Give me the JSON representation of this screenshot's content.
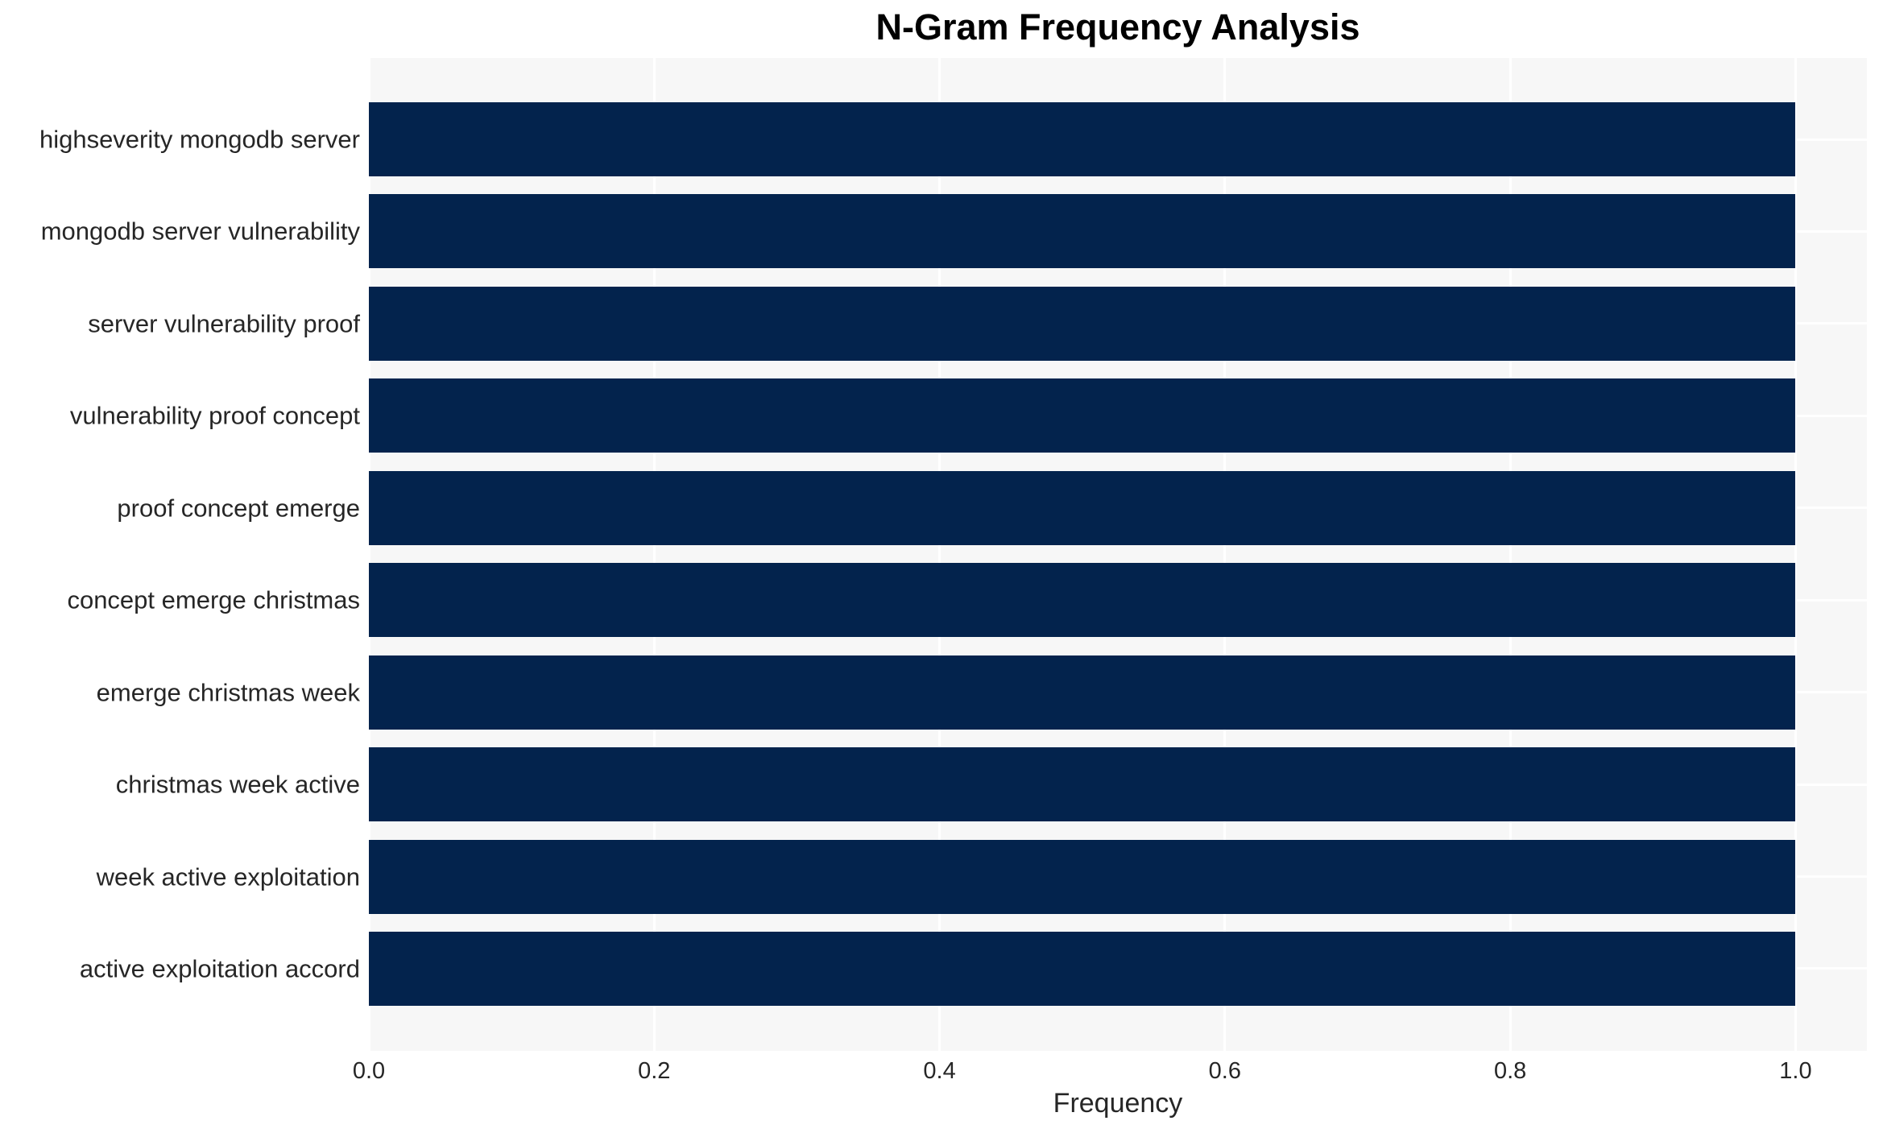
{
  "title": "N-Gram Frequency Analysis",
  "chart_data": {
    "type": "bar",
    "orientation": "horizontal",
    "title": "N-Gram Frequency Analysis",
    "xlabel": "Frequency",
    "ylabel": "",
    "categories": [
      "highseverity mongodb server",
      "mongodb server vulnerability",
      "server vulnerability proof",
      "vulnerability proof concept",
      "proof concept emerge",
      "concept emerge christmas",
      "emerge christmas week",
      "christmas week active",
      "week active exploitation",
      "active exploitation accord"
    ],
    "values": [
      1.0,
      1.0,
      1.0,
      1.0,
      1.0,
      1.0,
      1.0,
      1.0,
      1.0,
      1.0
    ],
    "xlim": [
      0,
      1.05
    ],
    "xticks": [
      "0.0",
      "0.2",
      "0.4",
      "0.6",
      "0.8",
      "1.0"
    ],
    "xtick_values": [
      0.0,
      0.2,
      0.4,
      0.6,
      0.8,
      1.0
    ],
    "grid": true,
    "legend_position": "none"
  },
  "colors": {
    "bar": "#03234d",
    "plot_background": "#f7f7f7",
    "gridline": "#ffffff",
    "tick_text": "#262626",
    "title_text": "#000000"
  }
}
